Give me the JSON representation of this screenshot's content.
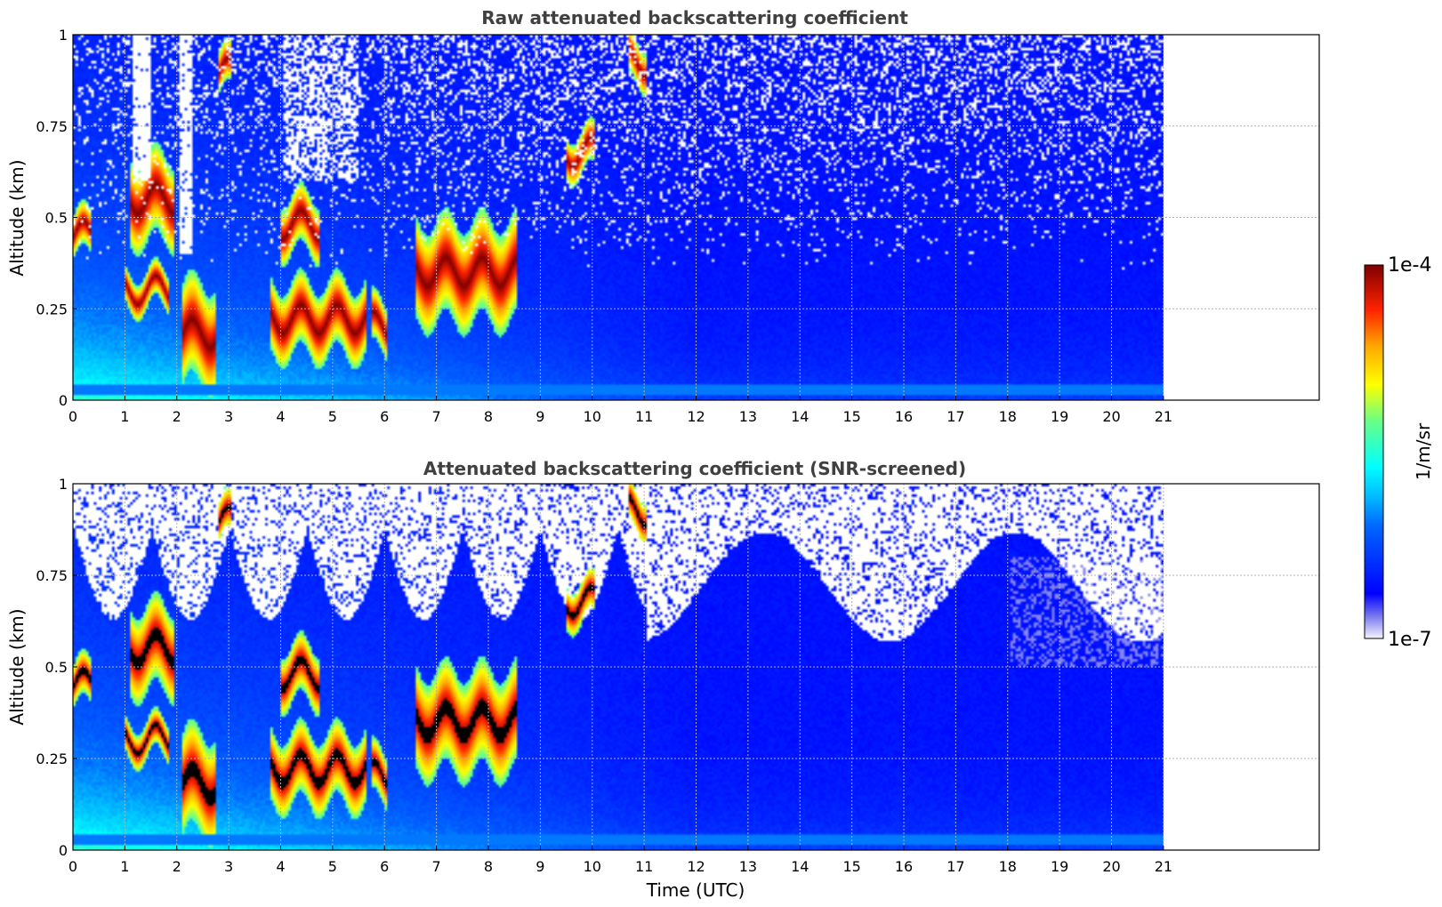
{
  "chart_data": [
    {
      "type": "heatmap",
      "title": "Raw attenuated backscattering coefficient",
      "xlabel": "",
      "ylabel": "Altitude (km)",
      "xlim": [
        0,
        24
      ],
      "ylim": [
        0,
        1
      ],
      "xticks": [
        "0",
        "1",
        "2",
        "3",
        "4",
        "5",
        "6",
        "7",
        "8",
        "9",
        "10",
        "11",
        "12",
        "13",
        "14",
        "15",
        "16",
        "17",
        "18",
        "19",
        "20",
        "21"
      ],
      "yticks": [
        "0",
        "0.25",
        "0.5",
        "0.75",
        "1"
      ],
      "data_end_time": 21,
      "screened": false,
      "grid": true
    },
    {
      "type": "heatmap",
      "title": "Attenuated backscattering coefficient (SNR-screened)",
      "xlabel": "Time (UTC)",
      "ylabel": "Altitude (km)",
      "xlim": [
        0,
        24
      ],
      "ylim": [
        0,
        1
      ],
      "xticks": [
        "0",
        "1",
        "2",
        "3",
        "4",
        "5",
        "6",
        "7",
        "8",
        "9",
        "10",
        "11",
        "12",
        "13",
        "14",
        "15",
        "16",
        "17",
        "18",
        "19",
        "20",
        "21"
      ],
      "yticks": [
        "0",
        "0.25",
        "0.5",
        "0.75",
        "1"
      ],
      "data_end_time": 21,
      "screened": true,
      "grid": true
    }
  ],
  "colorbar": {
    "label": "1/m/sr",
    "max_label": "1e-4",
    "min_label": "1e-7",
    "scale": "log",
    "colormap": "jet",
    "range": [
      1e-07,
      0.0001
    ]
  }
}
